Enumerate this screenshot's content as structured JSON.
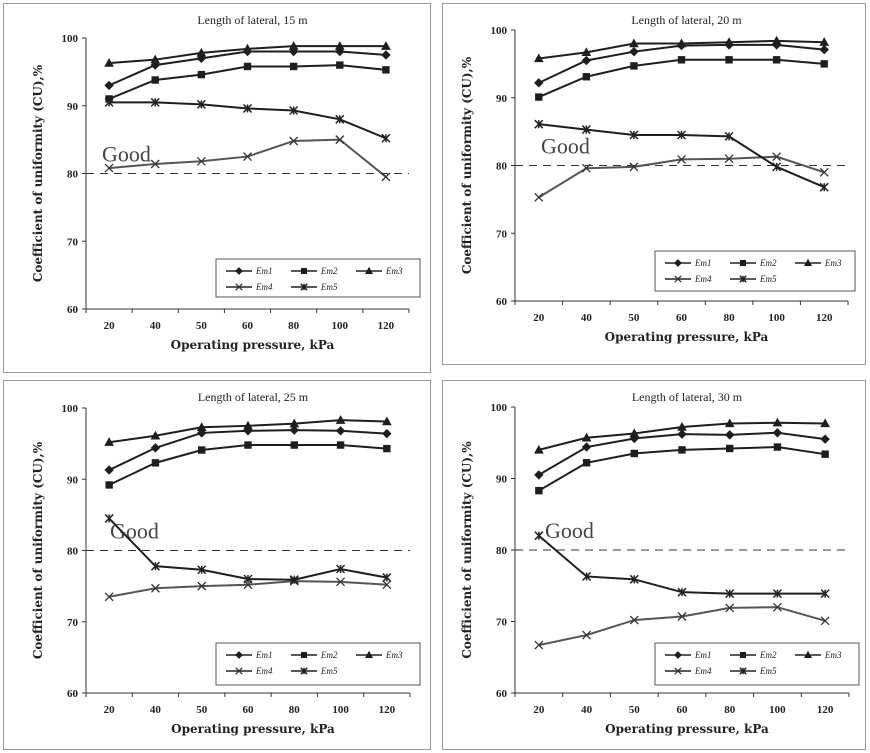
{
  "chart_data": [
    {
      "type": "line",
      "title": "Length of lateral, 15 m",
      "xlabel": "Operating pressure, kPa",
      "ylabel": "Coefficient of uniformity (CU),%",
      "categories": [
        "20",
        "40",
        "50",
        "60",
        "80",
        "100",
        "120"
      ],
      "ylim": [
        60,
        100
      ],
      "yticks": [
        "60",
        "70",
        "80",
        "90",
        "100"
      ],
      "threshold": {
        "value": 80,
        "label": "Good"
      },
      "series": [
        {
          "name": "Em1",
          "marker": "diamond",
          "values": [
            93,
            96,
            97,
            98,
            98,
            98,
            97.5
          ]
        },
        {
          "name": "Em2",
          "marker": "square",
          "values": [
            91,
            93.8,
            94.6,
            95.8,
            95.8,
            96,
            95.3
          ]
        },
        {
          "name": "Em3",
          "marker": "triangle",
          "values": [
            96.3,
            96.8,
            97.8,
            98.4,
            98.8,
            98.8,
            98.8
          ]
        },
        {
          "name": "Em4",
          "marker": "x",
          "values": [
            80.8,
            81.4,
            81.8,
            82.5,
            84.8,
            85,
            79.5
          ]
        },
        {
          "name": "Em5",
          "marker": "asterisk",
          "values": [
            90.5,
            90.5,
            90.2,
            89.6,
            89.3,
            88,
            85.2
          ]
        }
      ]
    },
    {
      "type": "line",
      "title": "Length of lateral, 20 m",
      "xlabel": "Operating pressure, kPa",
      "ylabel": "Coefficient of uniformity (CU),%",
      "categories": [
        "20",
        "40",
        "50",
        "60",
        "80",
        "100",
        "120"
      ],
      "ylim": [
        60,
        100
      ],
      "yticks": [
        "60",
        "70",
        "80",
        "90",
        "100"
      ],
      "threshold": {
        "value": 80,
        "label": "Good"
      },
      "series": [
        {
          "name": "Em1",
          "marker": "diamond",
          "values": [
            92.2,
            95.5,
            96.8,
            97.7,
            97.8,
            97.8,
            97.1
          ]
        },
        {
          "name": "Em2",
          "marker": "square",
          "values": [
            90.1,
            93.1,
            94.7,
            95.6,
            95.6,
            95.6,
            95
          ]
        },
        {
          "name": "Em3",
          "marker": "triangle",
          "values": [
            95.8,
            96.7,
            98,
            98,
            98.2,
            98.4,
            98.2
          ]
        },
        {
          "name": "Em4",
          "marker": "x",
          "values": [
            75.3,
            79.6,
            79.8,
            80.9,
            81,
            81.3,
            79
          ]
        },
        {
          "name": "Em5",
          "marker": "asterisk",
          "values": [
            86.1,
            85.3,
            84.5,
            84.5,
            84.3,
            79.8,
            76.8
          ]
        }
      ]
    },
    {
      "type": "line",
      "title": "Length of lateral, 25 m",
      "xlabel": "Operating pressure, kPa",
      "ylabel": "Coefficient of uniformity (CU),%",
      "categories": [
        "20",
        "40",
        "50",
        "60",
        "80",
        "100",
        "120"
      ],
      "ylim": [
        60,
        100
      ],
      "yticks": [
        "60",
        "70",
        "80",
        "90",
        "100"
      ],
      "threshold": {
        "value": 80,
        "label": "Good"
      },
      "series": [
        {
          "name": "Em1",
          "marker": "diamond",
          "values": [
            91.3,
            94.4,
            96.5,
            96.8,
            96.9,
            96.8,
            96.4
          ]
        },
        {
          "name": "Em2",
          "marker": "square",
          "values": [
            89.2,
            92.3,
            94.1,
            94.8,
            94.8,
            94.8,
            94.3
          ]
        },
        {
          "name": "Em3",
          "marker": "triangle",
          "values": [
            95.2,
            96.1,
            97.3,
            97.5,
            97.8,
            98.3,
            98.1
          ]
        },
        {
          "name": "Em4",
          "marker": "x",
          "values": [
            73.5,
            74.7,
            75,
            75.2,
            75.7,
            75.6,
            75.2
          ]
        },
        {
          "name": "Em5",
          "marker": "asterisk",
          "values": [
            84.5,
            77.8,
            77.3,
            76,
            75.9,
            77.4,
            76.2
          ]
        }
      ]
    },
    {
      "type": "line",
      "title": "Length of lateral, 30 m",
      "xlabel": "Operating pressure, kPa",
      "ylabel": "Coefficient of uniformity (CU),%",
      "categories": [
        "20",
        "40",
        "50",
        "60",
        "80",
        "100",
        "120"
      ],
      "ylim": [
        60,
        100
      ],
      "yticks": [
        "60",
        "70",
        "80",
        "90",
        "100"
      ],
      "threshold": {
        "value": 80,
        "label": "Good"
      },
      "series": [
        {
          "name": "Em1",
          "marker": "diamond",
          "values": [
            90.5,
            94.4,
            95.6,
            96.2,
            96.1,
            96.4,
            95.5
          ]
        },
        {
          "name": "Em2",
          "marker": "square",
          "values": [
            88.3,
            92.2,
            93.5,
            94,
            94.2,
            94.4,
            93.4
          ]
        },
        {
          "name": "Em3",
          "marker": "triangle",
          "values": [
            94,
            95.7,
            96.3,
            97.2,
            97.7,
            97.8,
            97.7
          ]
        },
        {
          "name": "Em4",
          "marker": "x",
          "values": [
            66.7,
            68.1,
            70.2,
            70.7,
            71.9,
            72,
            70.1
          ]
        },
        {
          "name": "Em5",
          "marker": "asterisk",
          "values": [
            82,
            76.3,
            75.9,
            74.1,
            73.9,
            73.9,
            73.9
          ]
        }
      ]
    }
  ]
}
